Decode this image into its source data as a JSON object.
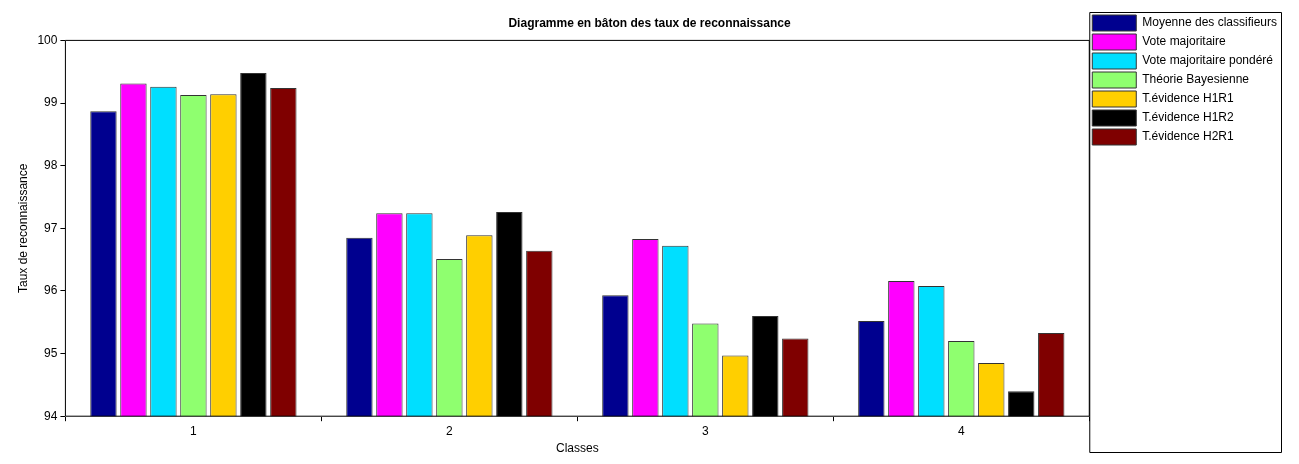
{
  "chart_data": {
    "type": "bar",
    "title": "Diagramme en bâton des taux de reconnaissance",
    "xlabel": "Classes",
    "ylabel": "Taux de reconnaissance",
    "categories": [
      "1",
      "2",
      "3",
      "4"
    ],
    "series": [
      {
        "name": "Moyenne des classifieurs",
        "color": "#00008f",
        "values": [
          98.87,
          96.85,
          95.93,
          95.52
        ]
      },
      {
        "name": "Vote majoritaire",
        "color": "#ff00ff",
        "values": [
          99.31,
          97.24,
          96.83,
          96.16
        ]
      },
      {
        "name": "Vote majoritaire pondéré",
        "color": "#00dfff",
        "values": [
          99.26,
          97.24,
          96.72,
          96.08
        ]
      },
      {
        "name": "Théorie Bayesienne",
        "color": "#8fff6f",
        "values": [
          99.13,
          96.51,
          95.48,
          95.2
        ]
      },
      {
        "name": "T.évidence H1R1",
        "color": "#ffcf00",
        "values": [
          99.14,
          96.89,
          94.97,
          94.85
        ]
      },
      {
        "name": "T.évidence H1R2",
        "color": "#000000",
        "values": [
          99.48,
          97.26,
          95.6,
          94.4
        ]
      },
      {
        "name": "T.évidence H2R1",
        "color": "#7f0000",
        "values": [
          99.24,
          96.64,
          95.24,
          95.33
        ]
      }
    ],
    "ylim": [
      94,
      100
    ],
    "yticks": [
      94,
      95,
      96,
      97,
      98,
      99,
      100
    ],
    "legend": "top right"
  }
}
